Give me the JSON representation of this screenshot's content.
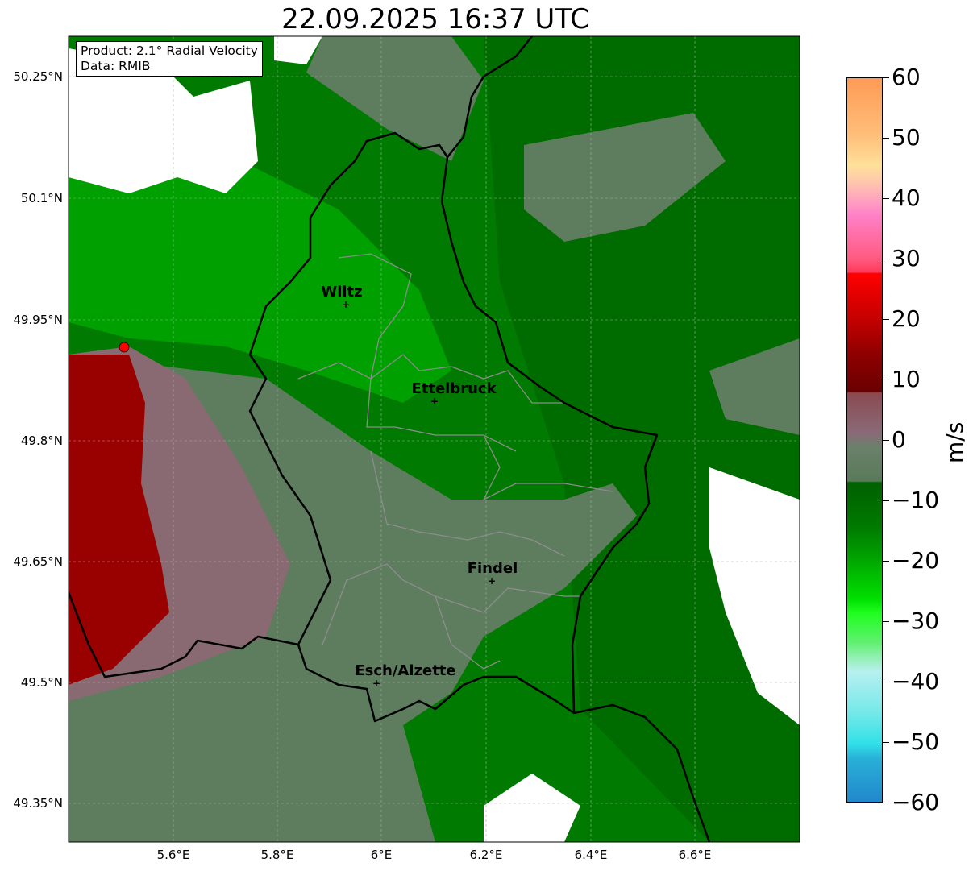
{
  "title": "22.09.2025 16:37 UTC",
  "info_box": {
    "line1": "Product: 2.1° Radial Velocity",
    "line2": "Data: RMIB"
  },
  "lat_ticks": [
    "50.25°N",
    "50.1°N",
    "49.95°N",
    "49.8°N",
    "49.65°N",
    "49.5°N",
    "49.35°N"
  ],
  "lon_ticks": [
    "5.6°E",
    "5.8°E",
    "6°E",
    "6.2°E",
    "6.4°E",
    "6.6°E"
  ],
  "cities": [
    {
      "name": "Wiltz"
    },
    {
      "name": "Ettelbruck"
    },
    {
      "name": "Findel"
    },
    {
      "name": "Esch/Alzette"
    }
  ],
  "colorbar": {
    "unit": "m/s",
    "min": -60,
    "max": 60,
    "ticks": [
      "60",
      "50",
      "40",
      "30",
      "20",
      "10",
      "0",
      "−10",
      "−20",
      "−30",
      "−40",
      "−50",
      "−60"
    ]
  },
  "colors": {
    "radar_site": "#ff0000",
    "border": "#000000",
    "canton": "#8c8c8c"
  }
}
